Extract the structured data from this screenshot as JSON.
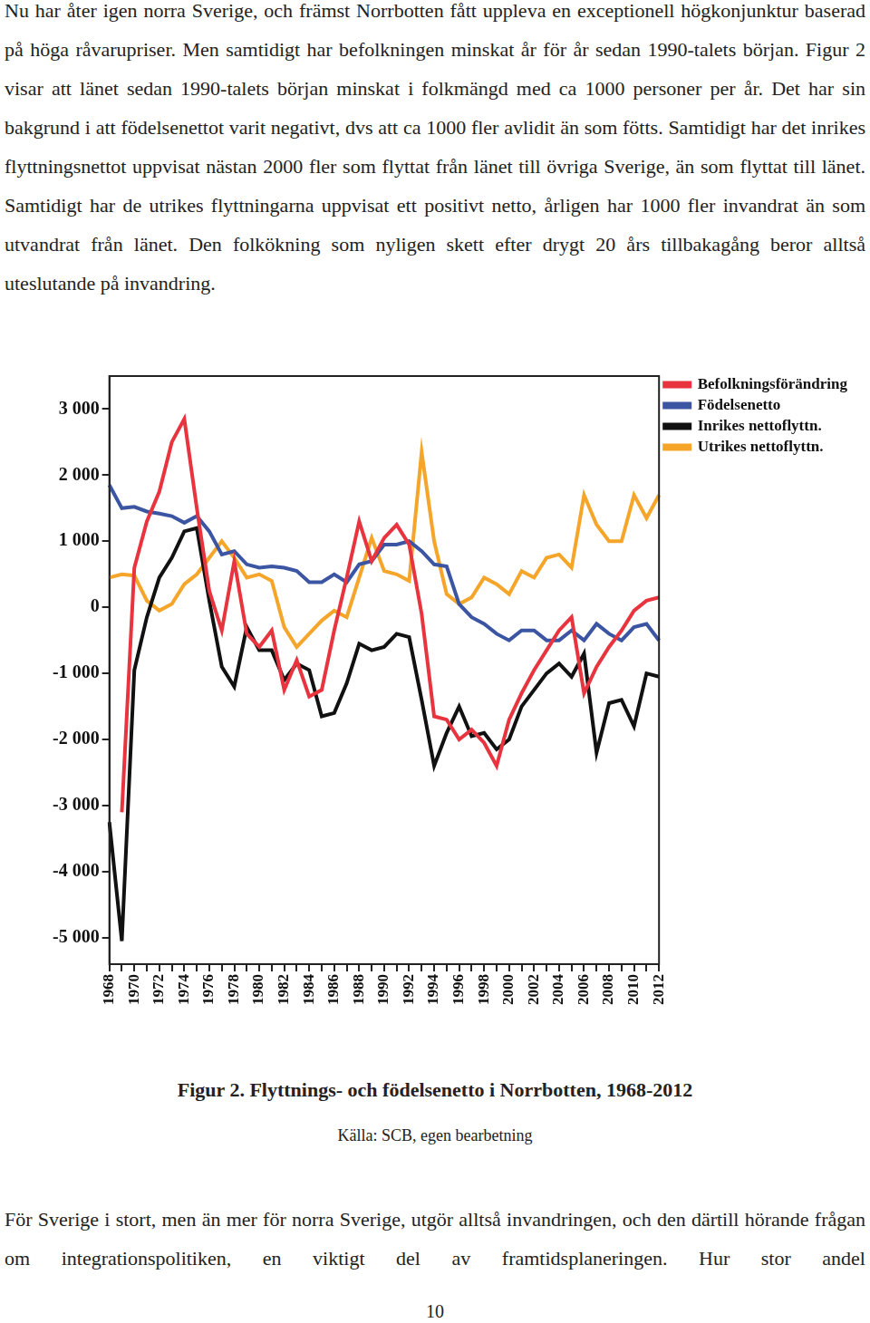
{
  "paragraph_top": "Nu har åter igen norra Sverige, och främst Norrbotten fått uppleva en exceptionell högkonjunktur baserad på höga råvarupriser. Men samtidigt har befolkningen minskat år för år sedan 1990-talets början. Figur 2 visar att länet sedan 1990-talets början minskat i folkmängd med ca 1000 personer per år. Det har sin bakgrund i att födelsenettot varit negativt, dvs att ca 1000 fler avlidit än som fötts. Samtidigt har det inrikes flyttningsnettot uppvisat nästan 2000 fler som flyttat från länet till övriga Sverige, än som flyttat till länet. Samtidigt har de utrikes flyttningarna uppvisat ett positivt netto, årligen har 1000 fler invandrat än som utvandrat från länet. Den folkökning som nyligen skett efter drygt 20 års tillbakagång beror alltså uteslutande på invandring.",
  "chart_data": {
    "type": "line",
    "categories": [
      "1968",
      null,
      "1970",
      null,
      "1972",
      null,
      "1974",
      null,
      "1976",
      null,
      "1978",
      null,
      "1980",
      null,
      "1982",
      null,
      "1984",
      null,
      "1986",
      null,
      "1988",
      null,
      "1990",
      null,
      "1992",
      null,
      "1994",
      null,
      "1996",
      null,
      "1998",
      null,
      "2000",
      null,
      "2002",
      null,
      "2004",
      null,
      "2006",
      null,
      "2008",
      null,
      "2010",
      null,
      "2012"
    ],
    "series": [
      {
        "name": "Befolkningsförändring",
        "color": "#e8343f",
        "values": [
          null,
          -3100,
          600,
          1300,
          1750,
          2500,
          2850,
          1500,
          250,
          -350,
          700,
          -400,
          -600,
          -350,
          -1250,
          -800,
          -1350,
          -1250,
          -350,
          450,
          1300,
          700,
          1050,
          1250,
          950,
          -100,
          -1650,
          -1700,
          -2000,
          -1850,
          -2050,
          -2400,
          -1700,
          -1300,
          -950,
          -650,
          -350,
          -150,
          -1300,
          -900,
          -600,
          -350,
          -50,
          100,
          150
        ]
      },
      {
        "name": "Födelsenetto",
        "color": "#3b55a3",
        "values": [
          1850,
          1500,
          1520,
          1450,
          1420,
          1380,
          1280,
          1380,
          1150,
          800,
          850,
          650,
          600,
          620,
          600,
          550,
          380,
          380,
          500,
          380,
          650,
          700,
          950,
          950,
          1000,
          850,
          650,
          620,
          50,
          -150,
          -250,
          -400,
          -500,
          -350,
          -350,
          -500,
          -500,
          -350,
          -500,
          -250,
          -400,
          -500,
          -300,
          -250,
          -500
        ]
      },
      {
        "name": "Inrikes nettoflyttn.",
        "color": "#111111",
        "values": [
          -3250,
          -5050,
          -950,
          -150,
          450,
          750,
          1150,
          1200,
          100,
          -900,
          -1200,
          -300,
          -650,
          -650,
          -1100,
          -850,
          -950,
          -1650,
          -1600,
          -1150,
          -550,
          -650,
          -600,
          -400,
          -450,
          -1400,
          -2400,
          -1900,
          -1500,
          -1950,
          -1900,
          -2150,
          -2000,
          -1500,
          -1250,
          -1000,
          -850,
          -1050,
          -700,
          -2200,
          -1450,
          -1400,
          -1800,
          -1000,
          -1050
        ]
      },
      {
        "name": "Utrikes nettoflyttn.",
        "color": "#f5a52a",
        "values": [
          450,
          500,
          480,
          100,
          -50,
          50,
          350,
          500,
          750,
          1000,
          750,
          450,
          500,
          400,
          -300,
          -600,
          -400,
          -200,
          -50,
          -150,
          450,
          1050,
          550,
          500,
          400,
          2350,
          1000,
          200,
          50,
          150,
          450,
          350,
          200,
          550,
          450,
          750,
          800,
          600,
          1700,
          1250,
          1000,
          1000,
          1700,
          1350,
          1700
        ]
      }
    ],
    "ylim": [
      -5400,
      3500
    ],
    "yticks": [
      {
        "value": -5000,
        "label": "-5 000"
      },
      {
        "value": -4000,
        "label": "-4 000"
      },
      {
        "value": -3000,
        "label": "-3 000"
      },
      {
        "value": -2000,
        "label": "-2 000"
      },
      {
        "value": -1000,
        "label": "-1 000"
      },
      0,
      {
        "value": 1000,
        "label": "1 000"
      },
      {
        "value": 2000,
        "label": "2 000"
      },
      {
        "value": 3000,
        "label": "3 000"
      }
    ],
    "grid": false,
    "legend": "right"
  },
  "caption": "Figur 2. Flyttnings- och födelsenetto i Norrbotten, 1968-2012",
  "source": "Källa: SCB, egen bearbetning",
  "paragraph_bottom": "För Sverige i stort, men än mer för norra Sverige, utgör alltså invandringen, och den därtill hörande frågan om integrationspolitiken, en viktigt del av framtidsplaneringen. Hur stor andel",
  "page_number": "10"
}
